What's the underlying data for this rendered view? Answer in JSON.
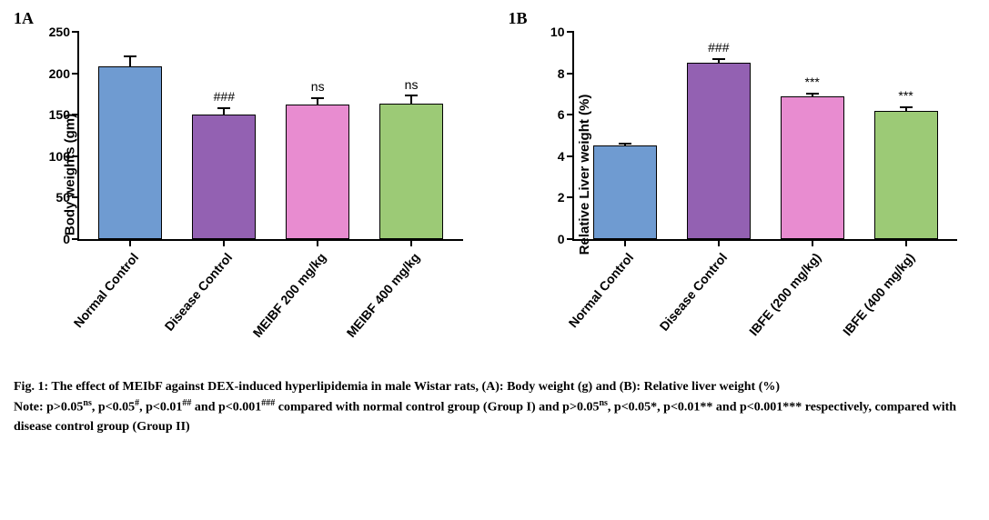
{
  "panelA": {
    "label": "1A",
    "ylabel": "Body weights (gm)",
    "ylim": [
      0,
      250
    ],
    "ytick_step": 50,
    "bar_width_pct": 68,
    "categories": [
      "Normal Control",
      "Disease Control",
      "MEIBF 200 mg/kg",
      "MEIBF 400 mg/kg"
    ],
    "values": [
      208,
      150,
      162,
      163
    ],
    "errors": [
      12,
      8,
      8,
      10
    ],
    "colors": [
      "#6f9bd1",
      "#9361b2",
      "#e88cd0",
      "#9cca76"
    ],
    "sig": [
      "",
      "###",
      "ns",
      "ns"
    ]
  },
  "panelB": {
    "label": "1B",
    "ylabel": "Relative Liver weight (%)",
    "ylim": [
      0,
      10
    ],
    "ytick_step": 2,
    "bar_width_pct": 68,
    "categories": [
      "Normal Control",
      "Disease Control",
      "IBFE (200 mg/kg)",
      "IBFE (400 mg/kg)"
    ],
    "values": [
      4.5,
      8.5,
      6.9,
      6.2
    ],
    "errors": [
      0.12,
      0.2,
      0.12,
      0.18
    ],
    "colors": [
      "#6f9bd1",
      "#9361b2",
      "#e88cd0",
      "#9cca76"
    ],
    "sig": [
      "",
      "###",
      "***",
      "***"
    ]
  },
  "caption": {
    "line1": "Fig. 1: The effect of MEIbF against DEX-induced hyperlipidemia in male Wistar rats, (A): Body weight (g) and (B): Relative liver weight (%)",
    "note_prefix": "Note: p>0.05",
    "note_rest1": ", p<0.05",
    "note_rest2": ", p<0.01",
    "note_rest3": " and p<0.001",
    "note_mid": " compared with normal control group (Group I) and p>0.05",
    "note_rest4": ", p<0.05*, p<0.01** and p<0.001*** respectively, compared with disease control group (Group II)",
    "sup_ns": "ns",
    "sup_h": "#",
    "sup_hh": "##",
    "sup_hhh": "###"
  },
  "styling": {
    "background": "#ffffff",
    "axis_color": "#000000",
    "font_family": "Arial",
    "caption_font_family": "Times New Roman",
    "axis_label_fontsize": 15,
    "tick_fontsize": 14,
    "panel_label_fontsize": 18,
    "caption_fontsize": 14
  }
}
